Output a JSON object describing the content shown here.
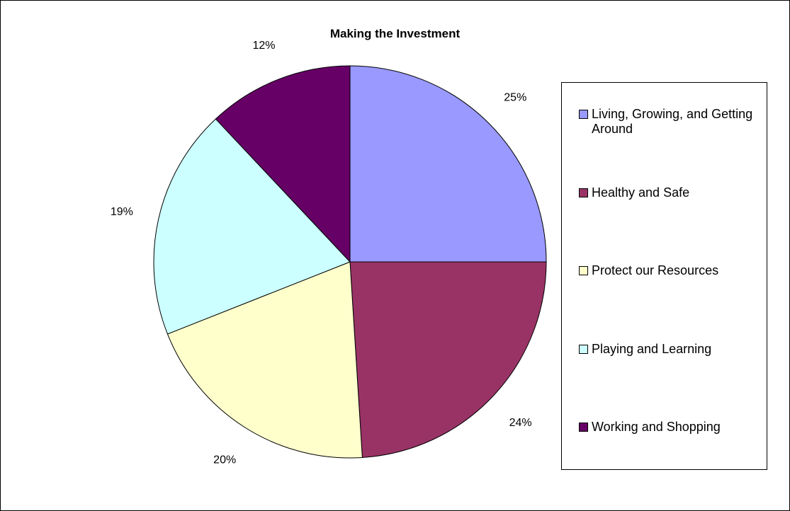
{
  "chart_data": {
    "type": "pie",
    "title": "Making the Investment",
    "categories": [
      "Living, Growing, and Getting Around",
      "Healthy and Safe",
      "Protect our Resources",
      "Playing and Learning",
      "Working and Shopping"
    ],
    "values": [
      25,
      24,
      20,
      19,
      12
    ],
    "value_labels": [
      "25%",
      "24%",
      "20%",
      "19%",
      "12%"
    ],
    "colors": [
      "#9999FF",
      "#993366",
      "#FFFFCC",
      "#CCFFFF",
      "#660066"
    ],
    "start_angle": "12 o'clock, clockwise",
    "legend": "right"
  }
}
